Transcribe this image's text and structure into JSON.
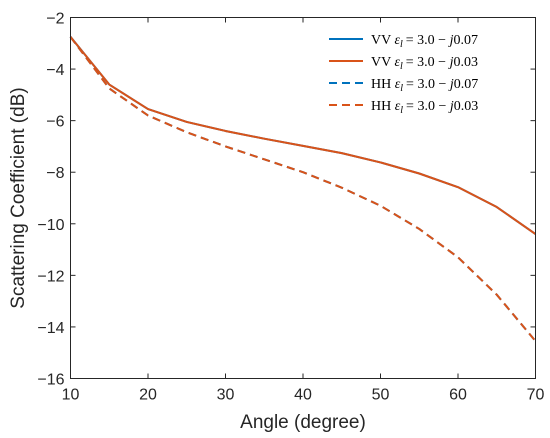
{
  "chart_data": {
    "type": "line",
    "title": "",
    "xlabel": "Angle (degree)",
    "ylabel": "Scattering Coefficient (dB)",
    "xlim": [
      10,
      70
    ],
    "ylim": [
      -16,
      -2
    ],
    "xticks": [
      10,
      20,
      30,
      40,
      50,
      60,
      70
    ],
    "yticks": [
      -2,
      -4,
      -6,
      -8,
      -10,
      -12,
      -14,
      -16
    ],
    "grid": false,
    "legend_position": "top-right",
    "x": [
      10,
      15,
      20,
      25,
      30,
      35,
      40,
      45,
      50,
      55,
      60,
      65,
      70
    ],
    "series": [
      {
        "name": "VV εl = 3.0 − j0.07",
        "legend": {
          "pol": "VV",
          "sub": "l",
          "expr": "= 3.0 − ",
          "j": "j",
          "num": "0.07"
        },
        "style": "solid",
        "color": "#0072BD",
        "values": [
          -2.75,
          -4.6,
          -5.55,
          -6.05,
          -6.4,
          -6.7,
          -6.98,
          -7.26,
          -7.62,
          -8.05,
          -8.58,
          -9.35,
          -10.4
        ]
      },
      {
        "name": "VV εl = 3.0 − j0.03",
        "legend": {
          "pol": "VV",
          "sub": "l",
          "expr": "= 3.0 − ",
          "j": "j",
          "num": "0.03"
        },
        "style": "solid",
        "color": "#D95319",
        "values": [
          -2.75,
          -4.6,
          -5.55,
          -6.05,
          -6.4,
          -6.7,
          -6.98,
          -7.26,
          -7.62,
          -8.05,
          -8.58,
          -9.35,
          -10.4
        ]
      },
      {
        "name": "HH εl = 3.0 − j0.07",
        "legend": {
          "pol": "HH",
          "sub": "l",
          "expr": "= 3.0 − ",
          "j": "j",
          "num": "0.07"
        },
        "style": "dashed",
        "color": "#0072BD",
        "values": [
          -2.75,
          -4.75,
          -5.8,
          -6.45,
          -7.0,
          -7.5,
          -8.0,
          -8.6,
          -9.3,
          -10.2,
          -11.3,
          -12.75,
          -14.55
        ]
      },
      {
        "name": "HH εl = 3.0 − j0.03",
        "legend": {
          "pol": "HH",
          "sub": "l",
          "expr": "= 3.0 − ",
          "j": "j",
          "num": "0.03"
        },
        "style": "dashed",
        "color": "#D95319",
        "values": [
          -2.75,
          -4.75,
          -5.8,
          -6.45,
          -7.0,
          -7.5,
          -8.0,
          -8.6,
          -9.3,
          -10.2,
          -11.3,
          -12.75,
          -14.55
        ]
      }
    ]
  }
}
